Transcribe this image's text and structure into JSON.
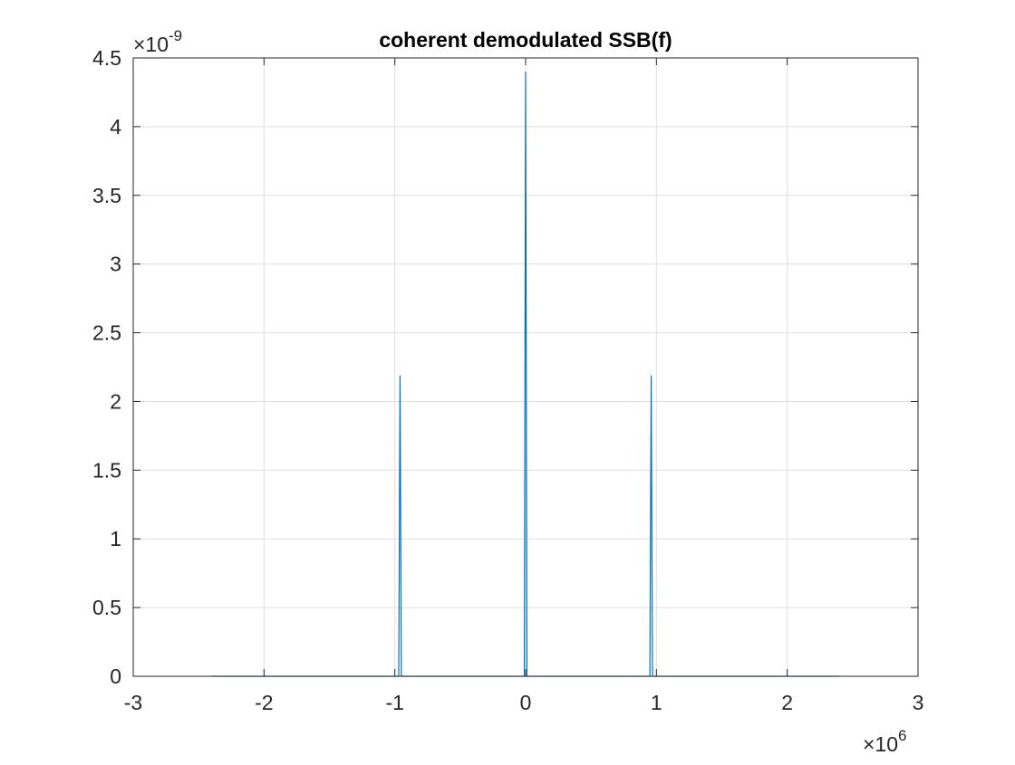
{
  "chart_data": {
    "type": "line",
    "title": "coherent demodulated SSB(f)",
    "xlabel": "",
    "ylabel": "",
    "xlim": [
      -3000000,
      3000000
    ],
    "ylim": [
      0,
      4.5e-09
    ],
    "grid": true,
    "x_ticks": [
      -3000000,
      -2000000,
      -1000000,
      0,
      1000000,
      2000000,
      3000000
    ],
    "x_tick_labels": [
      "-3",
      "-2",
      "-1",
      "0",
      "1",
      "2",
      "3"
    ],
    "y_ticks": [
      0,
      5e-10,
      1e-09,
      1.5e-09,
      2e-09,
      2.5e-09,
      3e-09,
      3.5e-09,
      4e-09,
      4.5e-09
    ],
    "y_tick_labels": [
      "0",
      "0.5",
      "1",
      "1.5",
      "2",
      "2.5",
      "3",
      "3.5",
      "4",
      "4.5"
    ],
    "x_exponent": "6",
    "y_exponent": "-9",
    "series": [
      {
        "color": "#0072BD",
        "x": [
          -2400000,
          -970000,
          -960000,
          -950000,
          -10000,
          0,
          10000,
          950000,
          960000,
          970000,
          2400000
        ],
        "y": [
          0,
          0,
          2.19e-09,
          0,
          0,
          4.4e-09,
          0,
          0,
          2.19e-09,
          0,
          0
        ]
      }
    ]
  }
}
